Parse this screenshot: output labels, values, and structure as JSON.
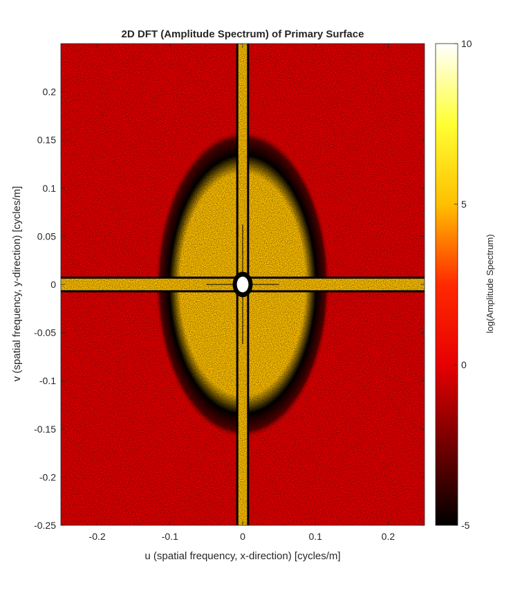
{
  "chart_data": {
    "type": "heatmap",
    "title": "2D DFT (Amplitude Spectrum) of Primary Surface",
    "xlabel": "u (spatial frequency, x-direction) [cycles/m]",
    "ylabel": "v (spatial frequency, y-direction) [cycles/m]",
    "xlim": [
      -0.25,
      0.25
    ],
    "ylim": [
      -0.25,
      0.25
    ],
    "x_ticks": [
      -0.2,
      -0.1,
      0,
      0.1,
      0.2
    ],
    "x_tick_labels": [
      "-0.2",
      "-0.1",
      "0",
      "0.1",
      "0.2"
    ],
    "y_ticks": [
      -0.25,
      -0.2,
      -0.15,
      -0.1,
      -0.05,
      0,
      0.05,
      0.1,
      0.15,
      0.2
    ],
    "y_tick_labels": [
      "-0.25",
      "-0.2",
      "-0.15",
      "-0.1",
      "-0.05",
      "0",
      "0.05",
      "0.1",
      "0.15",
      "0.2"
    ],
    "colorbar": {
      "label": "log(Amplitude Spectrum)",
      "range": [
        -5,
        10
      ],
      "ticks": [
        -5,
        0,
        5,
        10
      ],
      "tick_labels": [
        "-5",
        "0",
        "5",
        "10"
      ],
      "colormap": "hot",
      "stops": [
        {
          "value": -5,
          "color": "#000000"
        },
        {
          "value": 0,
          "color": "#e60000"
        },
        {
          "value": 2.5,
          "color": "#ff2a00"
        },
        {
          "value": 5,
          "color": "#ffc000"
        },
        {
          "value": 7.5,
          "color": "#ffff33"
        },
        {
          "value": 10,
          "color": "#ffffff"
        }
      ]
    },
    "features": {
      "background_value": 0,
      "central_lobe_value": 5,
      "central_lobe_half_width_u": 0.12,
      "central_lobe_half_height_v": 0.16,
      "dark_rim_value": -4,
      "axis_band_value": 5,
      "axis_band_half_width": 0.006,
      "peak_value": 10,
      "peak_radius": 0.008
    },
    "colors": {
      "background_red": "#e60000",
      "lobe_yellow": "#ffc000",
      "rim_black": "#000000",
      "peak_white": "#ffffff"
    }
  }
}
